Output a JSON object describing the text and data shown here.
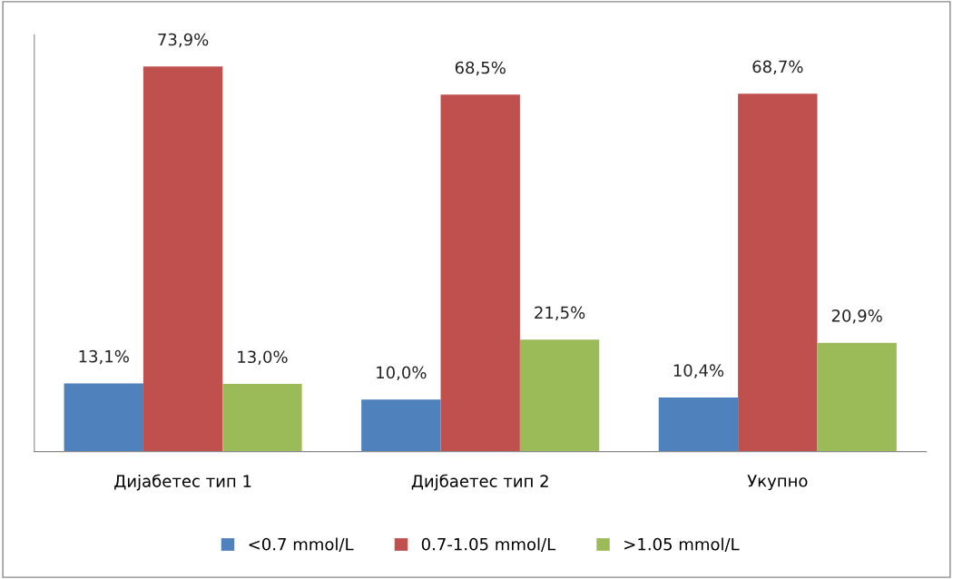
{
  "chart_data": {
    "type": "bar",
    "categories": [
      "Дијабетес тип 1",
      "Дијбаетес тип 2",
      "Укупно"
    ],
    "series": [
      {
        "name": "<0.7 mmol/L",
        "color": "#4f81bd",
        "values": [
          13.1,
          10.0,
          10.4
        ],
        "value_labels": [
          "13,1%",
          "10,0%",
          "10,4%"
        ]
      },
      {
        "name": "0.7-1.05 mmol/L",
        "color": "#c0504d",
        "values": [
          73.9,
          68.5,
          68.7
        ],
        "value_labels": [
          "73,9%",
          "68,5%",
          "68,7%"
        ]
      },
      {
        "name": ">1.05 mmol/L",
        "color": "#9bbb59",
        "values": [
          13.0,
          21.5,
          20.9
        ],
        "value_labels": [
          "13,0%",
          "21,5%",
          "20,9%"
        ]
      }
    ],
    "ylim": [
      0,
      80
    ],
    "tick_labels": "x",
    "grid": false,
    "legend": "bottom"
  }
}
